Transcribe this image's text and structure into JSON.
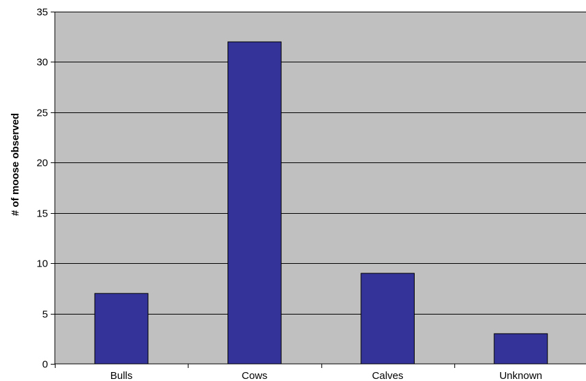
{
  "chart_data": {
    "type": "bar",
    "title": "",
    "xlabel": "",
    "ylabel": "# of moose observed",
    "categories": [
      "Bulls",
      "Cows",
      "Calves",
      "Unknown"
    ],
    "values": [
      7,
      32,
      9,
      3
    ],
    "ylim": [
      0,
      35
    ],
    "yticks": [
      0,
      5,
      10,
      15,
      20,
      25,
      30,
      35
    ],
    "grid": true,
    "legend": "none",
    "colors": {
      "bar_fill": "#333399",
      "bar_stroke": "#000000",
      "plot_background": "#c0c0c0",
      "gridline": "#000000",
      "axis": "#000000"
    }
  }
}
